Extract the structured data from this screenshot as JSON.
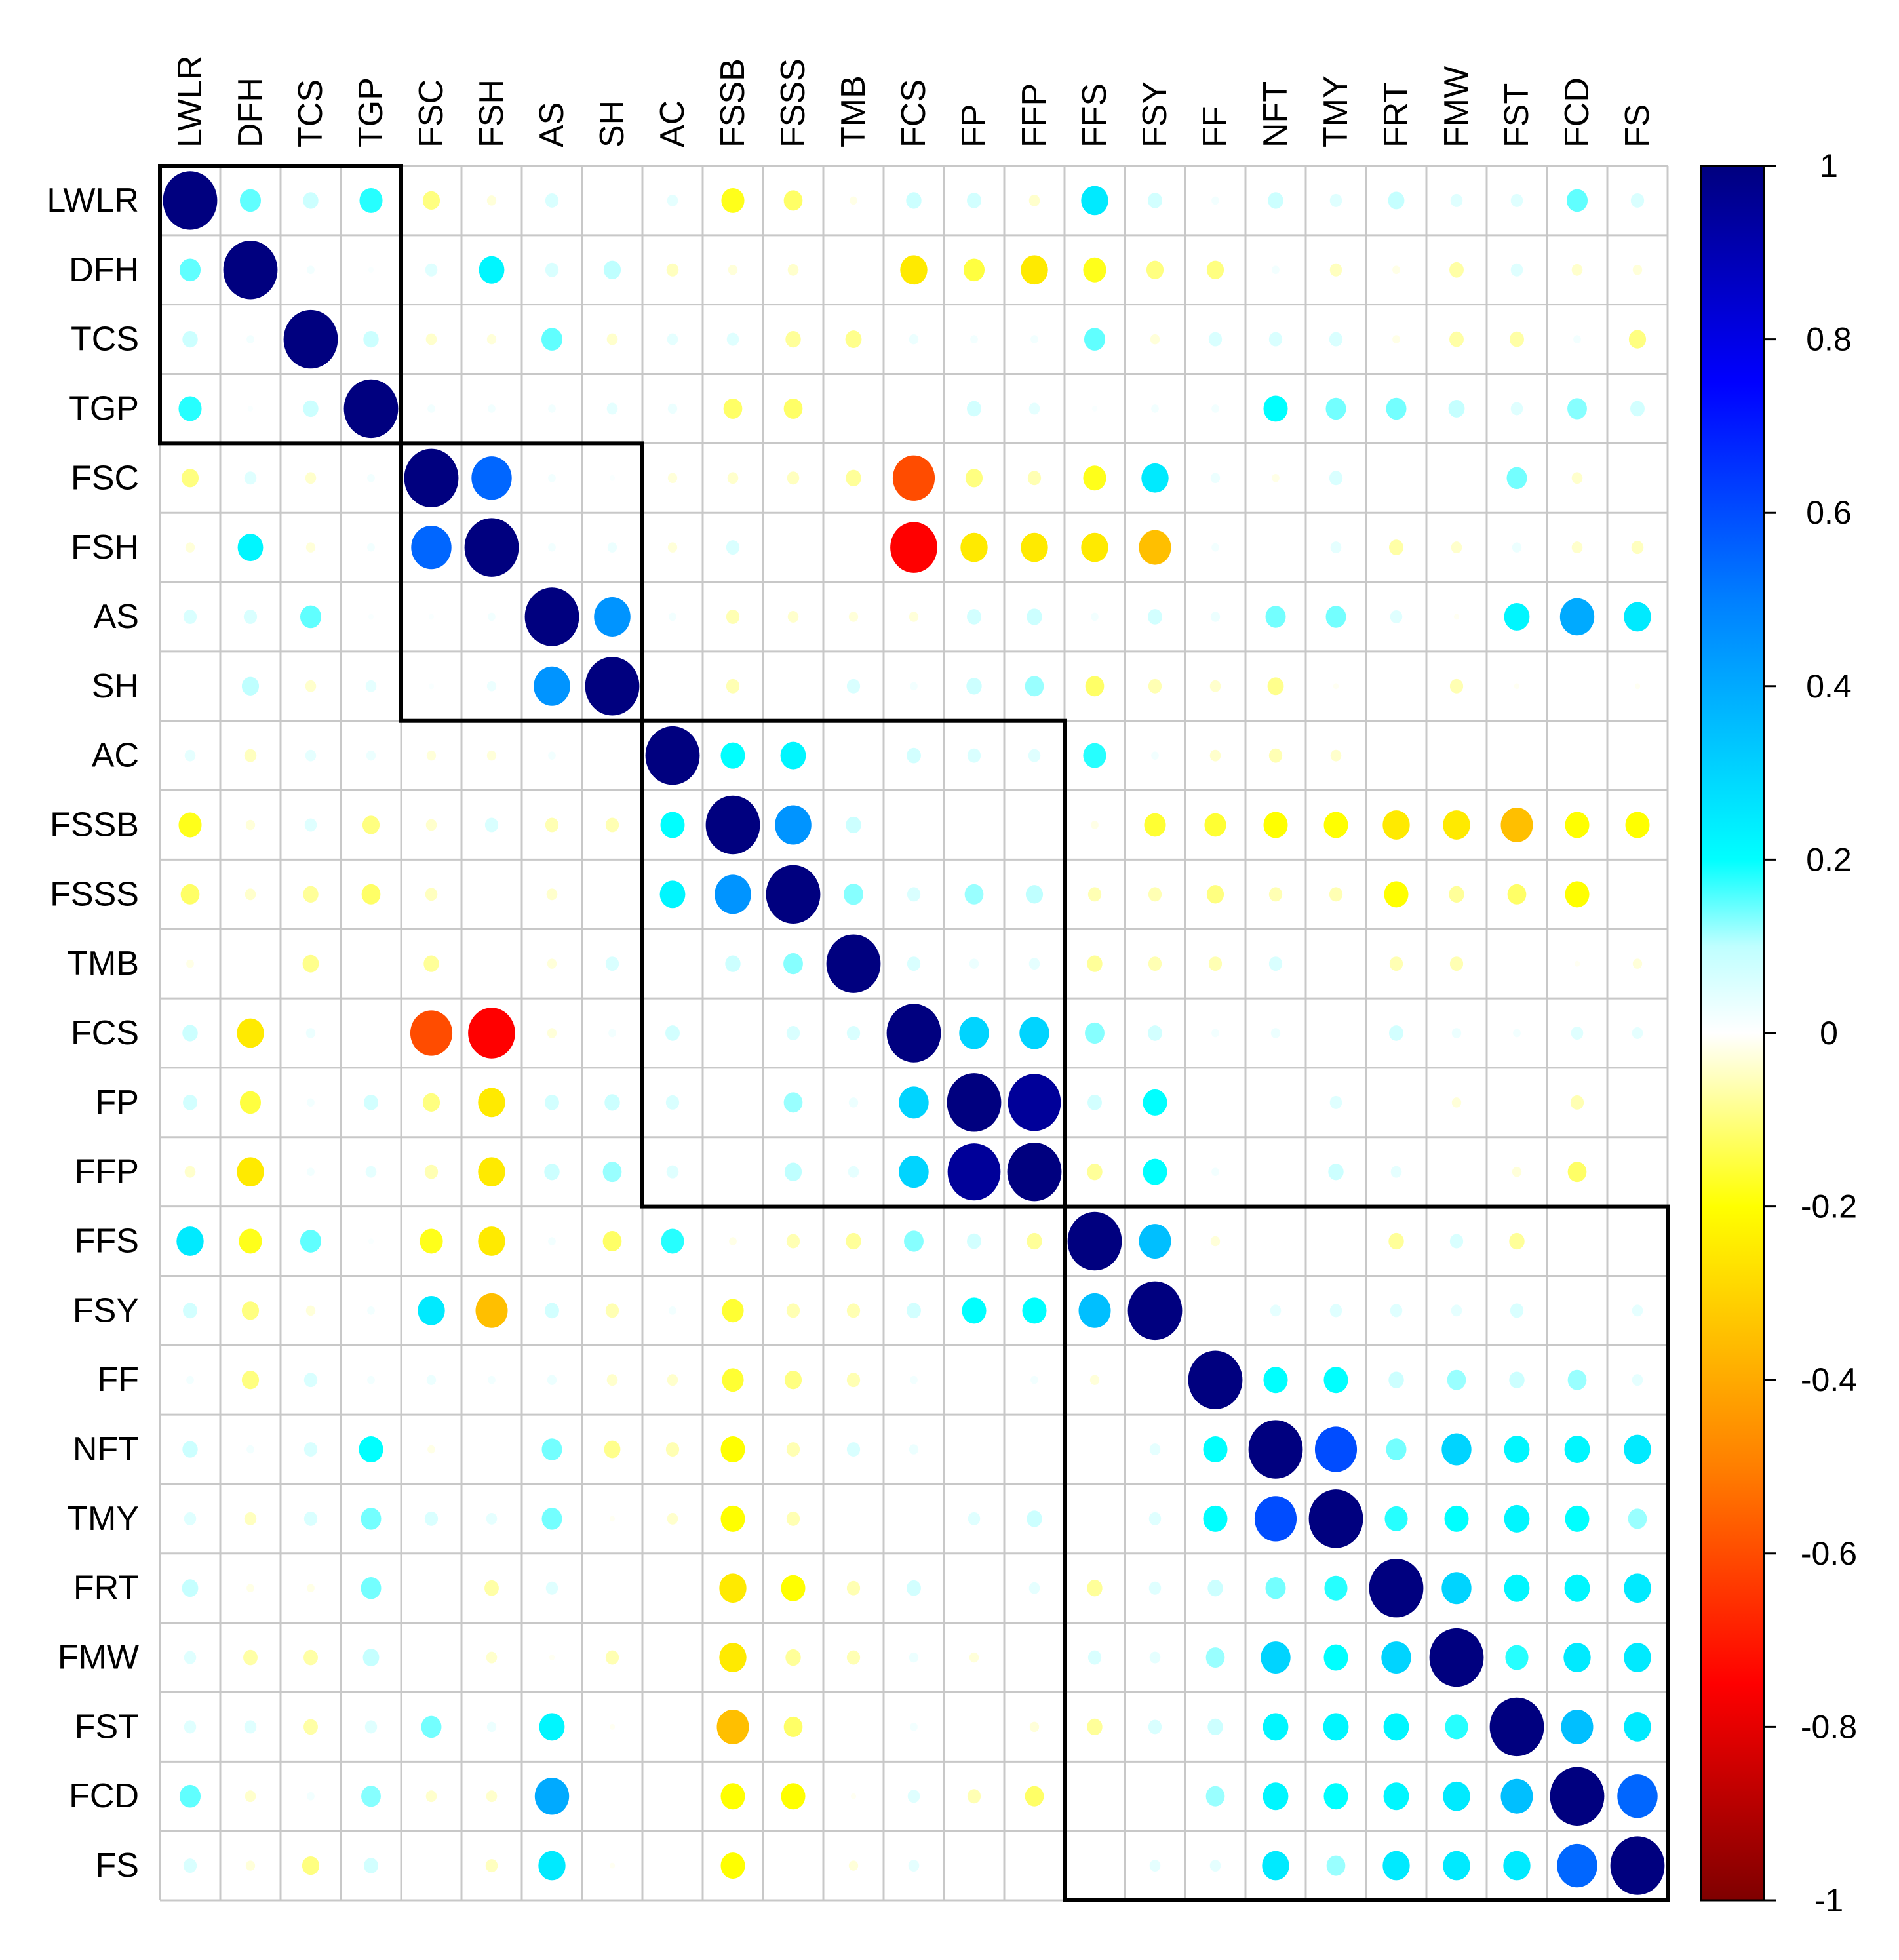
{
  "chart_data": {
    "type": "heatmap",
    "variables": [
      "LWLR",
      "DFH",
      "TCS",
      "TGP",
      "FSC",
      "FSH",
      "AS",
      "SH",
      "AC",
      "FSSB",
      "FSSS",
      "TMB",
      "FCS",
      "FP",
      "FFP",
      "FFS",
      "FSY",
      "FF",
      "NFT",
      "TMY",
      "FRT",
      "FMW",
      "FST",
      "FCD",
      "FS"
    ],
    "matrix": [
      [
        1.0,
        0.15,
        0.08,
        0.18,
        -0.1,
        -0.03,
        0.06,
        0,
        0.04,
        -0.18,
        -0.12,
        -0.02,
        0.08,
        0.07,
        -0.04,
        0.25,
        0.07,
        0.02,
        0.08,
        0.05,
        0.09,
        0.05,
        0.05,
        0.15,
        0.06
      ],
      [
        0.15,
        1.0,
        0.02,
        0.01,
        0.05,
        0.22,
        0.06,
        0.1,
        -0.05,
        -0.03,
        -0.04,
        0,
        -0.25,
        -0.15,
        -0.25,
        -0.18,
        -0.1,
        -0.1,
        0.02,
        -0.05,
        -0.02,
        -0.07,
        0.05,
        -0.04,
        -0.03
      ],
      [
        0.08,
        0.02,
        1.0,
        0.08,
        -0.04,
        -0.03,
        0.15,
        -0.04,
        0.04,
        0.05,
        -0.08,
        -0.09,
        0.03,
        0.02,
        0.02,
        0.15,
        -0.03,
        0.06,
        0.06,
        0.06,
        -0.02,
        -0.07,
        -0.07,
        0.02,
        -0.1
      ],
      [
        0.18,
        0.01,
        0.08,
        1.0,
        0.02,
        0.02,
        0.02,
        0.04,
        0.03,
        -0.12,
        -0.12,
        0,
        0,
        0.07,
        0.04,
        0.01,
        0.02,
        0.02,
        0.2,
        0.14,
        0.14,
        0.09,
        0.05,
        0.13,
        0.07
      ],
      [
        -0.1,
        0.05,
        -0.04,
        0.02,
        1.0,
        0.55,
        0.02,
        0.01,
        -0.03,
        -0.04,
        -0.05,
        -0.08,
        -0.6,
        -0.1,
        -0.06,
        -0.18,
        0.25,
        0.03,
        -0.02,
        0.06,
        0,
        0,
        0.14,
        -0.04,
        0
      ],
      [
        -0.03,
        0.22,
        -0.03,
        0.02,
        0.55,
        1.0,
        0.02,
        0.03,
        -0.03,
        0.06,
        0,
        0,
        -0.75,
        -0.25,
        -0.25,
        -0.25,
        -0.35,
        0.02,
        0,
        0.04,
        -0.07,
        -0.04,
        0.03,
        -0.04,
        -0.05
      ],
      [
        0.06,
        0.06,
        0.15,
        0.01,
        0.01,
        0.02,
        1.0,
        0.45,
        0.02,
        -0.06,
        -0.04,
        -0.03,
        -0.03,
        0.07,
        0.08,
        0.02,
        0.07,
        0.03,
        0.14,
        0.14,
        0.05,
        -0.01,
        0.22,
        0.4,
        0.25
      ],
      [
        0,
        0.1,
        -0.04,
        0.04,
        0.01,
        0.03,
        0.45,
        1.0,
        0,
        -0.06,
        0,
        0.06,
        0.02,
        0.08,
        0.12,
        -0.12,
        -0.06,
        -0.04,
        -0.09,
        -0.01,
        0,
        -0.06,
        -0.01,
        0,
        -0.01
      ],
      [
        0.04,
        -0.05,
        0.04,
        0.03,
        -0.03,
        -0.03,
        0.02,
        0,
        1.0,
        0.2,
        0.22,
        0,
        0.07,
        0.06,
        0.05,
        0.18,
        0.02,
        -0.04,
        -0.06,
        -0.04,
        0,
        0,
        0,
        0,
        0
      ],
      [
        -0.18,
        -0.03,
        0.05,
        -0.1,
        -0.04,
        0.06,
        -0.06,
        -0.06,
        0.2,
        1.0,
        0.45,
        0.08,
        0,
        0,
        0,
        -0.02,
        -0.16,
        -0.16,
        -0.2,
        -0.2,
        -0.25,
        -0.25,
        -0.35,
        -0.2,
        -0.2
      ],
      [
        -0.12,
        -0.04,
        -0.08,
        -0.12,
        -0.05,
        0,
        -0.04,
        0,
        0.22,
        0.45,
        1.0,
        0.13,
        0.06,
        0.12,
        0.1,
        -0.06,
        -0.06,
        -0.1,
        -0.06,
        -0.06,
        -0.2,
        -0.08,
        -0.12,
        -0.2,
        0
      ],
      [
        -0.02,
        0,
        -0.09,
        0,
        -0.08,
        0,
        -0.03,
        0.06,
        0,
        0.08,
        0.13,
        1.0,
        0.06,
        0.03,
        0.04,
        -0.08,
        -0.06,
        -0.06,
        0.06,
        0,
        -0.06,
        -0.06,
        0,
        -0.01,
        -0.03
      ],
      [
        0.08,
        -0.25,
        0.03,
        0,
        -0.6,
        -0.75,
        -0.03,
        0.02,
        0.07,
        0,
        0.06,
        0.06,
        1.0,
        0.3,
        0.3,
        0.13,
        0.07,
        0.02,
        0.03,
        0,
        0.07,
        0.03,
        0.02,
        0.05,
        0.04
      ],
      [
        0.07,
        -0.15,
        0.02,
        0.07,
        -0.1,
        -0.25,
        0.07,
        0.08,
        0.06,
        0,
        0.12,
        0.03,
        0.3,
        1.0,
        0.95,
        0.07,
        0.2,
        0,
        0,
        0.05,
        0,
        -0.03,
        0,
        -0.06,
        0
      ],
      [
        -0.04,
        -0.25,
        0.02,
        0.04,
        -0.06,
        -0.25,
        0.08,
        0.12,
        0.05,
        0,
        0.1,
        0.04,
        0.3,
        0.95,
        1.0,
        -0.08,
        0.2,
        0.02,
        0,
        0.08,
        0.04,
        0,
        -0.03,
        -0.12,
        0
      ],
      [
        0.25,
        -0.18,
        0.15,
        0.01,
        -0.18,
        -0.25,
        0.02,
        -0.12,
        0.18,
        -0.02,
        -0.06,
        -0.08,
        0.13,
        0.07,
        -0.08,
        1.0,
        0.35,
        -0.03,
        0,
        0,
        -0.08,
        0.06,
        -0.08,
        0,
        0
      ],
      [
        0.07,
        -0.1,
        -0.03,
        0.02,
        0.25,
        -0.35,
        0.07,
        -0.06,
        0.02,
        -0.16,
        -0.06,
        -0.06,
        0.07,
        0.2,
        0.2,
        0.35,
        1.0,
        0,
        0.04,
        0.05,
        0.05,
        0.04,
        0.06,
        0,
        0.04
      ],
      [
        0.02,
        -0.1,
        0.06,
        0.02,
        0.03,
        0.02,
        0.03,
        -0.04,
        -0.04,
        -0.16,
        -0.1,
        -0.06,
        0.02,
        0,
        0.02,
        -0.03,
        0,
        1.0,
        0.2,
        0.2,
        0.08,
        0.12,
        0.08,
        0.12,
        0.04
      ],
      [
        0.08,
        0.02,
        0.06,
        0.2,
        -0.02,
        0,
        0.14,
        -0.09,
        -0.06,
        -0.2,
        -0.06,
        0.06,
        0.03,
        0,
        0,
        0,
        0.04,
        0.2,
        1.0,
        0.6,
        0.14,
        0.3,
        0.22,
        0.22,
        0.25
      ],
      [
        0.05,
        -0.05,
        0.06,
        0.14,
        0.06,
        0.04,
        0.14,
        -0.01,
        -0.04,
        -0.2,
        -0.06,
        0,
        0,
        0.05,
        0.08,
        0,
        0.05,
        0.2,
        0.6,
        1.0,
        0.18,
        0.2,
        0.22,
        0.2,
        0.12
      ],
      [
        0.09,
        -0.02,
        -0.02,
        0.14,
        0,
        -0.07,
        0.05,
        0,
        0,
        -0.25,
        -0.2,
        -0.06,
        0.07,
        0,
        0.04,
        -0.08,
        0.05,
        0.08,
        0.14,
        0.18,
        1.0,
        0.3,
        0.22,
        0.22,
        0.25
      ],
      [
        0.05,
        -0.07,
        -0.07,
        0.09,
        0,
        -0.04,
        -0.01,
        -0.06,
        0,
        -0.25,
        -0.08,
        -0.06,
        0.03,
        -0.03,
        0,
        0.06,
        0.04,
        0.12,
        0.3,
        0.2,
        0.3,
        1.0,
        0.18,
        0.25,
        0.25
      ],
      [
        0.05,
        0.05,
        -0.07,
        0.05,
        0.14,
        0.03,
        0.22,
        -0.01,
        0,
        -0.35,
        -0.12,
        0,
        0.02,
        0,
        -0.03,
        -0.08,
        0.06,
        0.08,
        0.22,
        0.22,
        0.22,
        0.18,
        1.0,
        0.35,
        0.25
      ],
      [
        0.15,
        -0.04,
        0.02,
        0.13,
        -0.04,
        -0.04,
        0.4,
        0,
        0,
        -0.2,
        -0.2,
        -0.01,
        0.05,
        -0.06,
        -0.12,
        0,
        0,
        0.12,
        0.22,
        0.2,
        0.22,
        0.25,
        0.35,
        1.0,
        0.55
      ],
      [
        0.06,
        -0.03,
        -0.1,
        0.07,
        0,
        -0.05,
        0.25,
        -0.01,
        0,
        -0.2,
        0,
        -0.03,
        0.04,
        0,
        0,
        0,
        0.04,
        0.04,
        0.25,
        0.12,
        0.25,
        0.25,
        0.25,
        0.55,
        1.0
      ]
    ],
    "clusters": [
      [
        0,
        3
      ],
      [
        4,
        7
      ],
      [
        8,
        14
      ],
      [
        15,
        24
      ]
    ],
    "colorbar": {
      "ticks": [
        "1",
        "0.8",
        "0.6",
        "0.4",
        "0.2",
        "0",
        "-0.2",
        "-0.4",
        "-0.6",
        "-0.8",
        "-1"
      ],
      "range": [
        -1,
        1
      ]
    },
    "title": "",
    "xlabel": "",
    "ylabel": ""
  }
}
